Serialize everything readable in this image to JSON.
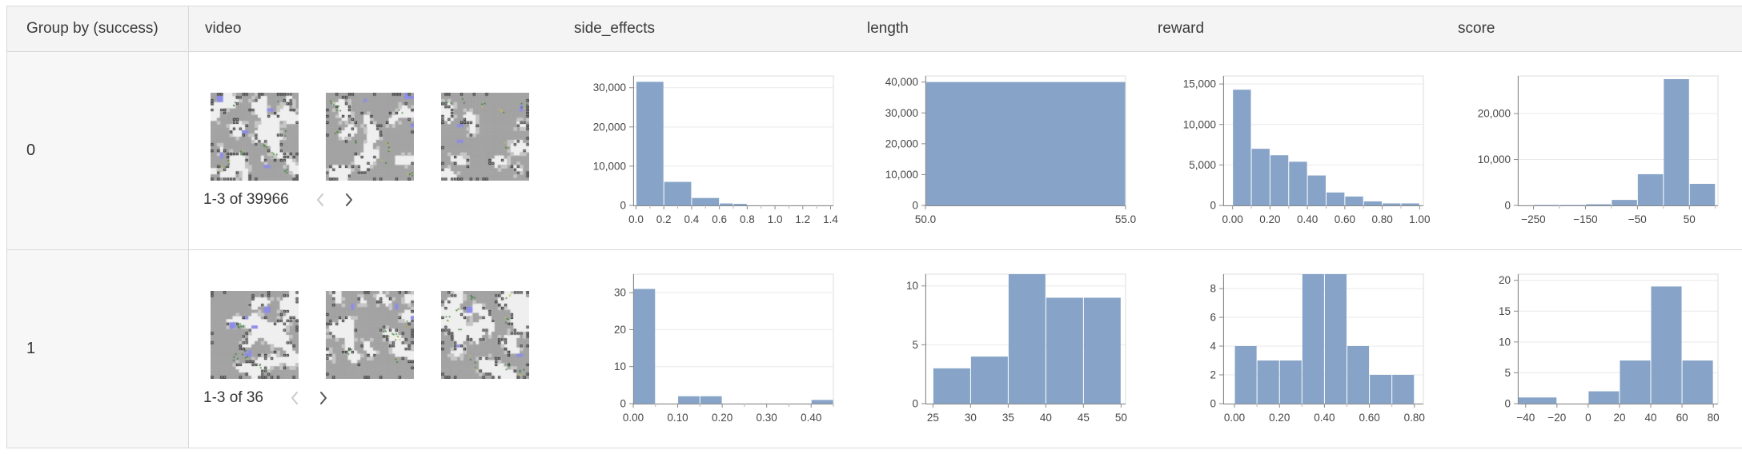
{
  "colors": {
    "bar_fill": "#87a4c8",
    "header_bg": "#f4f4f4",
    "group_cell_bg": "#f7f7f7",
    "border": "#d9d9d9",
    "grid_line": "#e9e9e9",
    "axis_line": "#8a8a8a",
    "minor_tick": "#b5b5b5",
    "axis_label": "#474747",
    "thumb_gray": "#a3a3a3",
    "thumb_light": "#efefef",
    "thumb_blue": "#8d8de8",
    "thumb_green": "#2c7a2a",
    "thumb_yellow": "#c9c24e"
  },
  "table": {
    "columns": [
      {
        "key": "group",
        "label": "Group by (success)"
      },
      {
        "key": "video",
        "label": "video"
      },
      {
        "key": "side_effects",
        "label": "side_effects"
      },
      {
        "key": "length",
        "label": "length"
      },
      {
        "key": "reward",
        "label": "reward"
      },
      {
        "key": "score",
        "label": "score"
      }
    ],
    "rows": [
      {
        "group_label": "0",
        "video": {
          "pagination": "1-3 of 39966",
          "prev_enabled": false,
          "next_enabled": true,
          "thumbnail_count": 3
        },
        "chart_refs": {
          "side_effects": 0,
          "length": 1,
          "reward": 2,
          "score": 3
        }
      },
      {
        "group_label": "1",
        "video": {
          "pagination": "1-3 of 36",
          "prev_enabled": false,
          "next_enabled": true,
          "thumbnail_count": 3
        },
        "chart_refs": {
          "side_effects": 4,
          "length": 5,
          "reward": 6,
          "score": 7
        }
      }
    ]
  },
  "chart_data": [
    {
      "type": "bar",
      "group": "0",
      "column": "side_effects",
      "x_domain": [
        -0.02,
        1.42
      ],
      "y_domain": [
        0,
        33000
      ],
      "x_ticks": [
        {
          "v": 0.0,
          "label": "0.0"
        },
        {
          "v": 0.2,
          "label": "0.2"
        },
        {
          "v": 0.4,
          "label": "0.4"
        },
        {
          "v": 0.6,
          "label": "0.6"
        },
        {
          "v": 0.8,
          "label": "0.8"
        },
        {
          "v": 1.0,
          "label": "1.0"
        },
        {
          "v": 1.2,
          "label": "1.2"
        },
        {
          "v": 1.4,
          "label": "1.4"
        }
      ],
      "x_minor_ticks": [
        0.1,
        0.3,
        0.5,
        0.7,
        0.9,
        1.1,
        1.3
      ],
      "y_ticks": [
        {
          "v": 0,
          "label": "0"
        },
        {
          "v": 10000,
          "label": "10,000"
        },
        {
          "v": 20000,
          "label": "20,000"
        },
        {
          "v": 30000,
          "label": "30,000"
        }
      ],
      "bins": [
        [
          0.0,
          0.2,
          31500
        ],
        [
          0.2,
          0.4,
          6000
        ],
        [
          0.4,
          0.6,
          1900
        ],
        [
          0.6,
          0.7,
          500
        ],
        [
          0.7,
          0.8,
          400
        ]
      ]
    },
    {
      "type": "bar",
      "group": "0",
      "column": "length",
      "x_domain": [
        50,
        55
      ],
      "y_domain": [
        0,
        42000
      ],
      "x_ticks": [
        {
          "v": 50,
          "label": "50.0"
        },
        {
          "v": 55,
          "label": "55.0"
        }
      ],
      "x_minor_ticks": [],
      "y_ticks": [
        {
          "v": 0,
          "label": "0"
        },
        {
          "v": 10000,
          "label": "10,000"
        },
        {
          "v": 20000,
          "label": "20,000"
        },
        {
          "v": 30000,
          "label": "30,000"
        },
        {
          "v": 40000,
          "label": "40,000"
        }
      ],
      "bins": [
        [
          50,
          55,
          40000
        ]
      ]
    },
    {
      "type": "bar",
      "group": "0",
      "column": "reward",
      "x_domain": [
        -0.05,
        1.02
      ],
      "y_domain": [
        0,
        16000
      ],
      "x_ticks": [
        {
          "v": 0.0,
          "label": "0.00"
        },
        {
          "v": 0.2,
          "label": "0.20"
        },
        {
          "v": 0.4,
          "label": "0.40"
        },
        {
          "v": 0.6,
          "label": "0.60"
        },
        {
          "v": 0.8,
          "label": "0.80"
        },
        {
          "v": 1.0,
          "label": "1.00"
        }
      ],
      "x_minor_ticks": [
        0.1,
        0.3,
        0.5,
        0.7,
        0.9
      ],
      "y_ticks": [
        {
          "v": 0,
          "label": "0"
        },
        {
          "v": 5000,
          "label": "5,000"
        },
        {
          "v": 10000,
          "label": "10,000"
        },
        {
          "v": 15000,
          "label": "15,000"
        }
      ],
      "bins": [
        [
          0.0,
          0.1,
          14300
        ],
        [
          0.1,
          0.2,
          7000
        ],
        [
          0.2,
          0.3,
          6200
        ],
        [
          0.3,
          0.4,
          5400
        ],
        [
          0.4,
          0.5,
          3700
        ],
        [
          0.5,
          0.6,
          1600
        ],
        [
          0.6,
          0.7,
          1100
        ],
        [
          0.7,
          0.8,
          500
        ],
        [
          0.8,
          0.9,
          250
        ],
        [
          0.9,
          1.0,
          250
        ]
      ]
    },
    {
      "type": "bar",
      "group": "0",
      "column": "score",
      "x_domain": [
        -280,
        105
      ],
      "y_domain": [
        0,
        28200
      ],
      "x_ticks": [
        {
          "v": -250,
          "label": "−250"
        },
        {
          "v": -150,
          "label": "−150"
        },
        {
          "v": -50,
          "label": "−50"
        },
        {
          "v": 50,
          "label": "50"
        }
      ],
      "x_minor_ticks": [
        -200,
        -100,
        0,
        100
      ],
      "y_ticks": [
        {
          "v": 0,
          "label": "0"
        },
        {
          "v": 10000,
          "label": "10,000"
        },
        {
          "v": 20000,
          "label": "20,000"
        }
      ],
      "bins": [
        [
          -250,
          -200,
          100
        ],
        [
          -200,
          -150,
          100
        ],
        [
          -150,
          -100,
          250
        ],
        [
          -100,
          -50,
          1200
        ],
        [
          -50,
          0,
          6800
        ],
        [
          0,
          50,
          27500
        ],
        [
          50,
          100,
          4700
        ]
      ]
    },
    {
      "type": "bar",
      "group": "1",
      "column": "side_effects",
      "x_domain": [
        0,
        0.45
      ],
      "y_domain": [
        0,
        35
      ],
      "x_ticks": [
        {
          "v": 0.0,
          "label": "0.00"
        },
        {
          "v": 0.1,
          "label": "0.10"
        },
        {
          "v": 0.2,
          "label": "0.20"
        },
        {
          "v": 0.3,
          "label": "0.30"
        },
        {
          "v": 0.4,
          "label": "0.40"
        }
      ],
      "x_minor_ticks": [
        0.05,
        0.15,
        0.25,
        0.35,
        0.45
      ],
      "y_ticks": [
        {
          "v": 0,
          "label": "0"
        },
        {
          "v": 10,
          "label": "10"
        },
        {
          "v": 20,
          "label": "20"
        },
        {
          "v": 30,
          "label": "30"
        }
      ],
      "bins": [
        [
          0.0,
          0.05,
          31
        ],
        [
          0.1,
          0.15,
          2
        ],
        [
          0.15,
          0.2,
          2
        ],
        [
          0.4,
          0.45,
          1
        ]
      ]
    },
    {
      "type": "bar",
      "group": "1",
      "column": "length",
      "x_domain": [
        24,
        50.6
      ],
      "y_domain": [
        0,
        11
      ],
      "x_ticks": [
        {
          "v": 25,
          "label": "25"
        },
        {
          "v": 30,
          "label": "30"
        },
        {
          "v": 35,
          "label": "35"
        },
        {
          "v": 40,
          "label": "40"
        },
        {
          "v": 45,
          "label": "45"
        },
        {
          "v": 50,
          "label": "50"
        }
      ],
      "x_minor_ticks": [],
      "y_ticks": [
        {
          "v": 0,
          "label": "0"
        },
        {
          "v": 5,
          "label": "5"
        },
        {
          "v": 10,
          "label": "10"
        }
      ],
      "bins": [
        [
          25,
          30,
          3
        ],
        [
          30,
          35,
          4
        ],
        [
          35,
          40,
          11
        ],
        [
          40,
          45,
          9
        ],
        [
          45,
          50,
          9
        ]
      ]
    },
    {
      "type": "bar",
      "group": "1",
      "column": "reward",
      "x_domain": [
        -0.05,
        0.84
      ],
      "y_domain": [
        0,
        9
      ],
      "x_ticks": [
        {
          "v": 0.0,
          "label": "0.00"
        },
        {
          "v": 0.2,
          "label": "0.20"
        },
        {
          "v": 0.4,
          "label": "0.40"
        },
        {
          "v": 0.6,
          "label": "0.60"
        },
        {
          "v": 0.8,
          "label": "0.80"
        }
      ],
      "x_minor_ticks": [
        0.1,
        0.3,
        0.5,
        0.7
      ],
      "y_ticks": [
        {
          "v": 0,
          "label": "0"
        },
        {
          "v": 2,
          "label": "2"
        },
        {
          "v": 4,
          "label": "4"
        },
        {
          "v": 6,
          "label": "6"
        },
        {
          "v": 8,
          "label": "8"
        }
      ],
      "bins": [
        [
          0.0,
          0.1,
          4
        ],
        [
          0.1,
          0.2,
          3
        ],
        [
          0.2,
          0.3,
          3
        ],
        [
          0.3,
          0.4,
          9
        ],
        [
          0.4,
          0.5,
          9
        ],
        [
          0.5,
          0.6,
          4
        ],
        [
          0.6,
          0.7,
          2
        ],
        [
          0.7,
          0.8,
          2
        ]
      ]
    },
    {
      "type": "bar",
      "group": "1",
      "column": "score",
      "x_domain": [
        -45,
        83
      ],
      "y_domain": [
        0,
        21
      ],
      "x_ticks": [
        {
          "v": -40,
          "label": "−40"
        },
        {
          "v": -20,
          "label": "−20"
        },
        {
          "v": 0,
          "label": "0"
        },
        {
          "v": 20,
          "label": "20"
        },
        {
          "v": 40,
          "label": "40"
        },
        {
          "v": 60,
          "label": "60"
        },
        {
          "v": 80,
          "label": "80"
        }
      ],
      "x_minor_ticks": [],
      "y_ticks": [
        {
          "v": 0,
          "label": "0"
        },
        {
          "v": 5,
          "label": "5"
        },
        {
          "v": 10,
          "label": "10"
        },
        {
          "v": 15,
          "label": "15"
        },
        {
          "v": 20,
          "label": "20"
        }
      ],
      "bins": [
        [
          -45,
          -20,
          1
        ],
        [
          0,
          20,
          2
        ],
        [
          20,
          40,
          7
        ],
        [
          40,
          60,
          19
        ],
        [
          60,
          80,
          7
        ]
      ]
    }
  ]
}
